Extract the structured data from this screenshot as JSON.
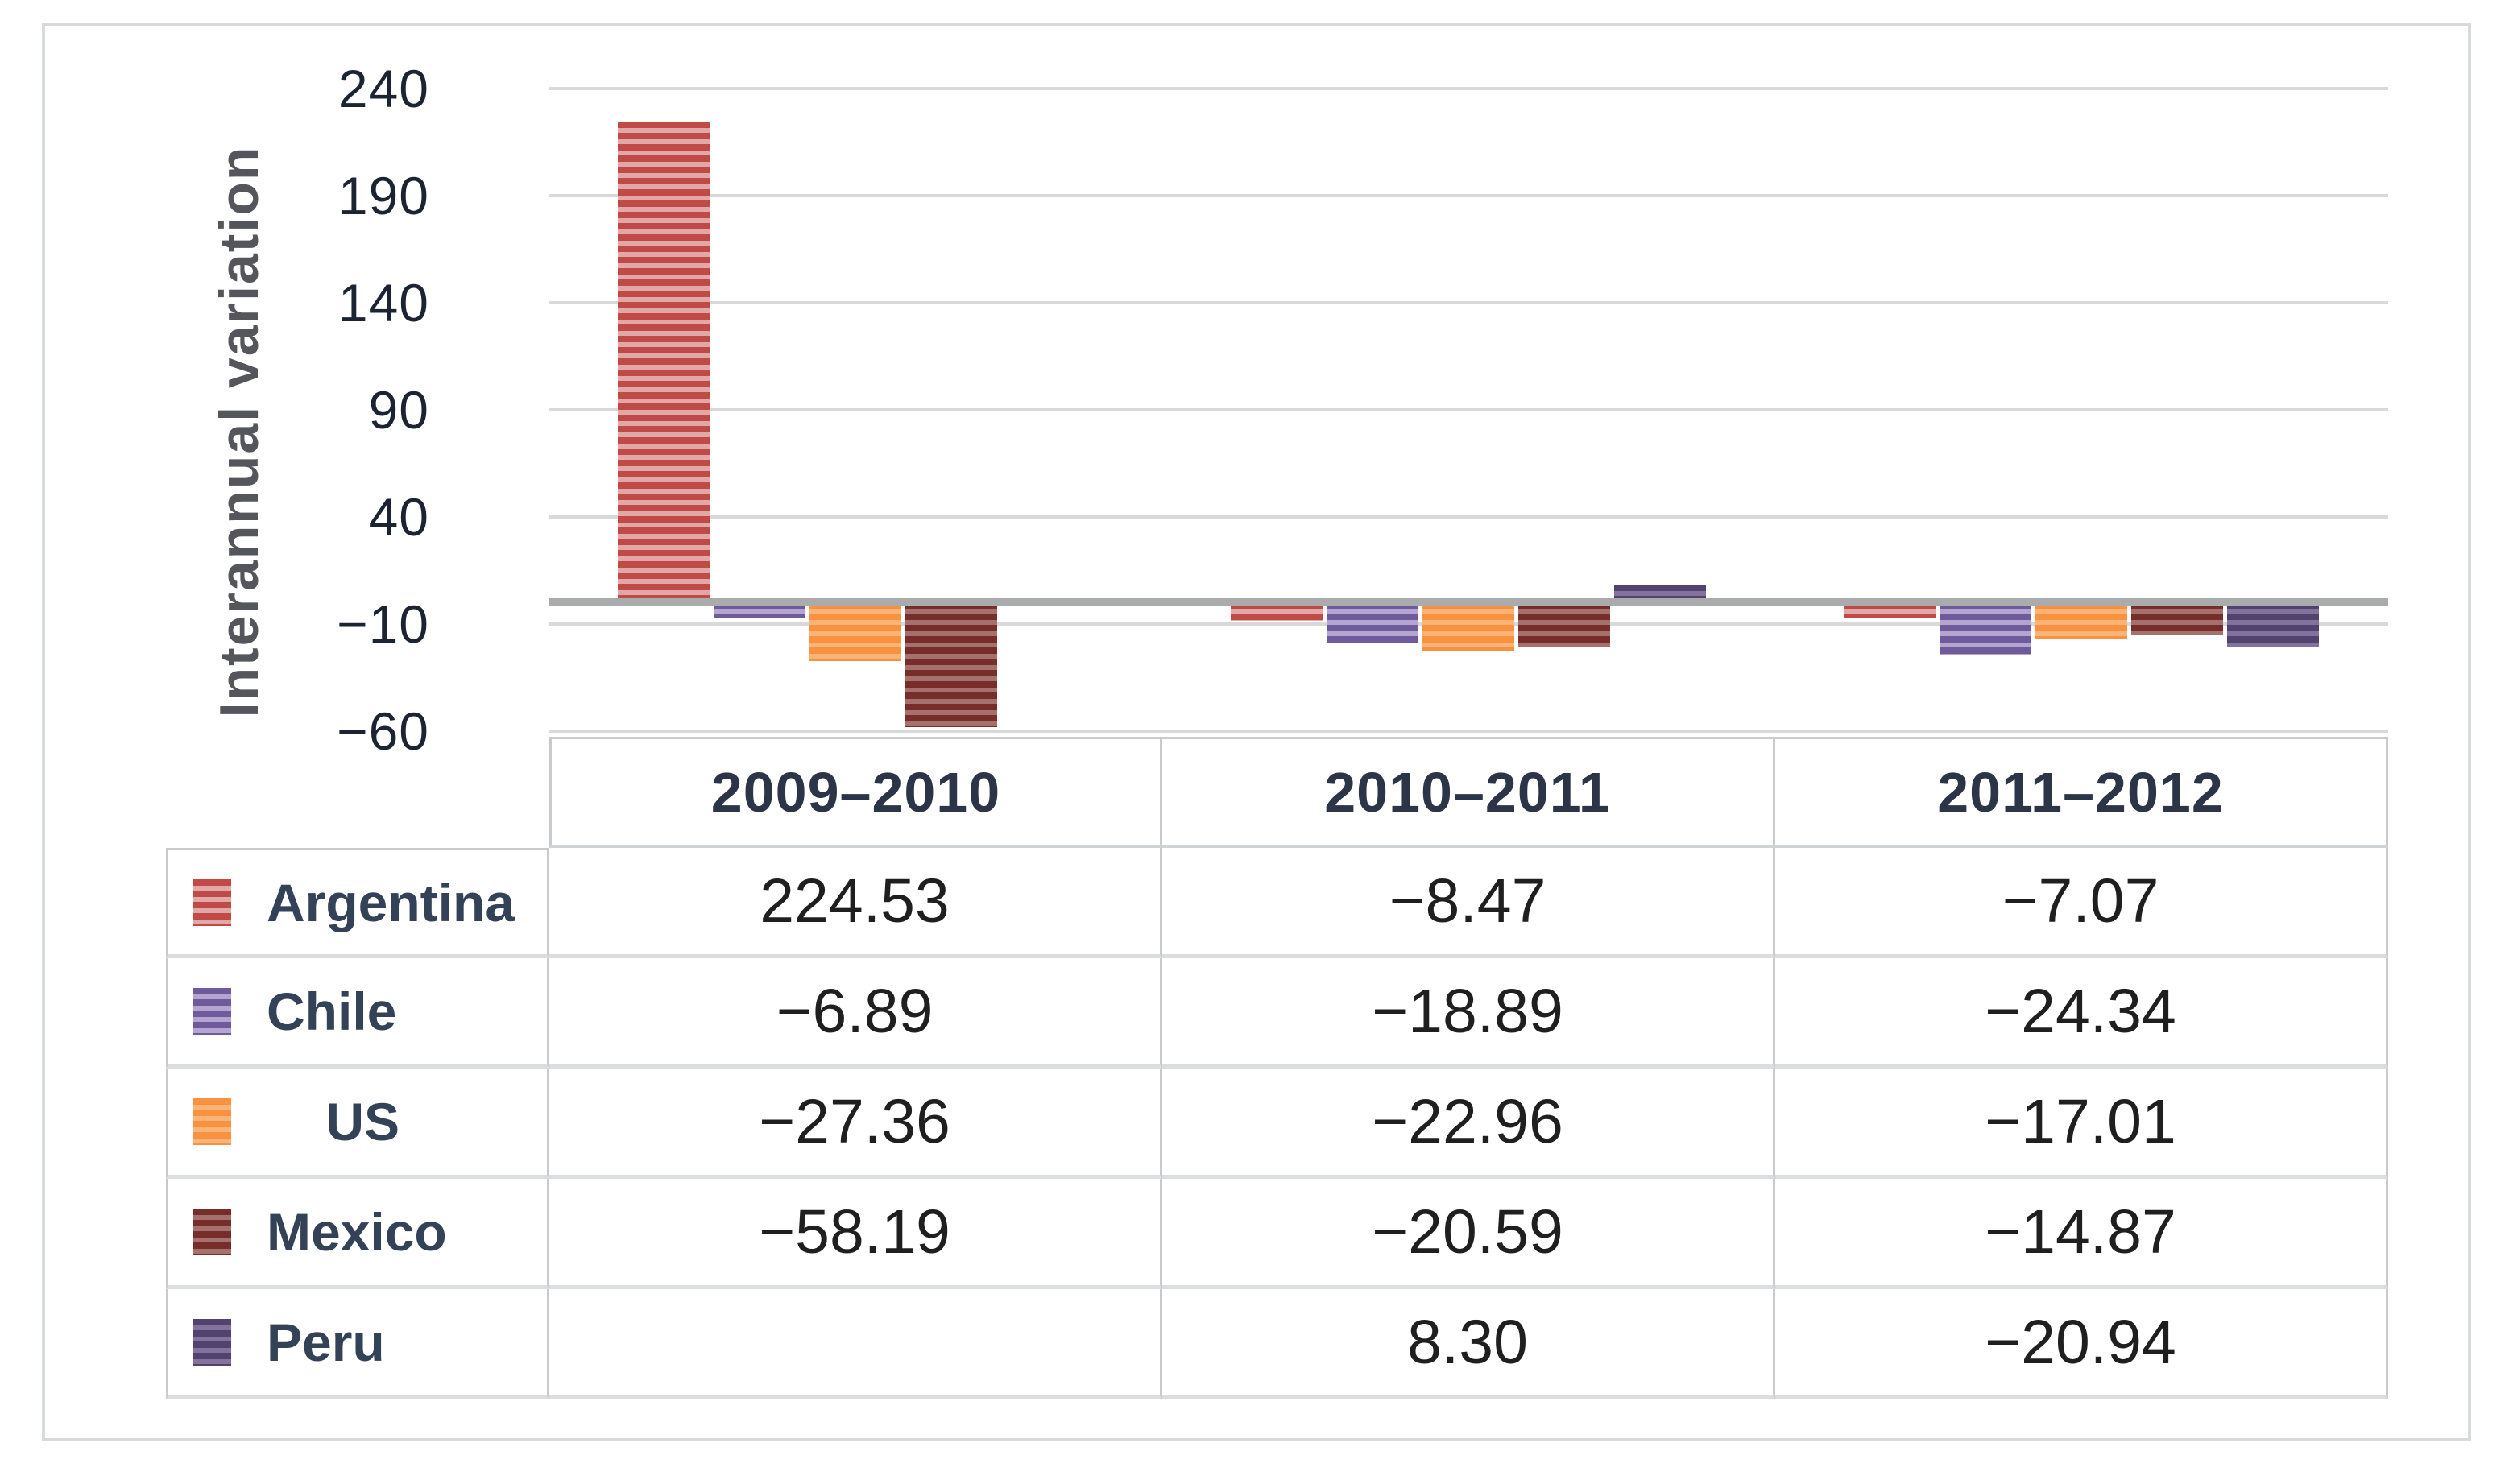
{
  "figure": {
    "axis_title": "Interannual variation",
    "y_ticks": [
      240,
      190,
      140,
      90,
      40,
      -10,
      -60
    ],
    "tick_labels": [
      "240",
      "190",
      "140",
      "90",
      "40",
      "−10",
      "−60"
    ]
  },
  "chart_data": {
    "type": "bar",
    "title": "",
    "xlabel": "",
    "ylabel": "Interannual variation",
    "categories": [
      "2009–2010",
      "2010–2011",
      "2011–2012"
    ],
    "series": [
      {
        "name": "Argentina",
        "values": [
          224.53,
          -8.47,
          -7.07
        ],
        "color": "#c14a47",
        "stripe": "#e0a9a7"
      },
      {
        "name": "Chile",
        "values": [
          -6.89,
          -18.89,
          -24.34
        ],
        "color": "#6f5a9b",
        "stripe": "#b3a5cf"
      },
      {
        "name": "US",
        "values": [
          -27.36,
          -22.96,
          -17.01
        ],
        "color": "#f89140",
        "stripe": "#fbb377"
      },
      {
        "name": "Mexico",
        "values": [
          -58.19,
          -20.59,
          -14.87
        ],
        "color": "#772d29",
        "stripe": "#a5716d"
      },
      {
        "name": "Peru",
        "values": [
          null,
          8.3,
          -20.94
        ],
        "color": "#51426f",
        "stripe": "#81739c"
      }
    ],
    "ylim": [
      -60,
      240
    ],
    "grid": true,
    "legend_position": "table-left-column"
  },
  "table": {
    "column_headers": [
      "2009–2010",
      "2010–2011",
      "2011–2012"
    ],
    "rows": [
      {
        "label": "Argentina",
        "label_display": "Argentina",
        "display": [
          "224.53",
          "−8.47",
          "−7.07"
        ]
      },
      {
        "label": "Chile",
        "label_display": "Chile",
        "display": [
          "−6.89",
          "−18.89",
          "−24.34"
        ]
      },
      {
        "label": "US",
        "label_display": "    US",
        "display": [
          "−27.36",
          "−22.96",
          "−17.01"
        ]
      },
      {
        "label": "Mexico",
        "label_display": "Mexico",
        "display": [
          "−58.19",
          "−20.59",
          "−14.87"
        ]
      },
      {
        "label": "Peru",
        "label_display": "Peru",
        "display": [
          "",
          "8.30",
          "−20.94"
        ]
      }
    ]
  }
}
